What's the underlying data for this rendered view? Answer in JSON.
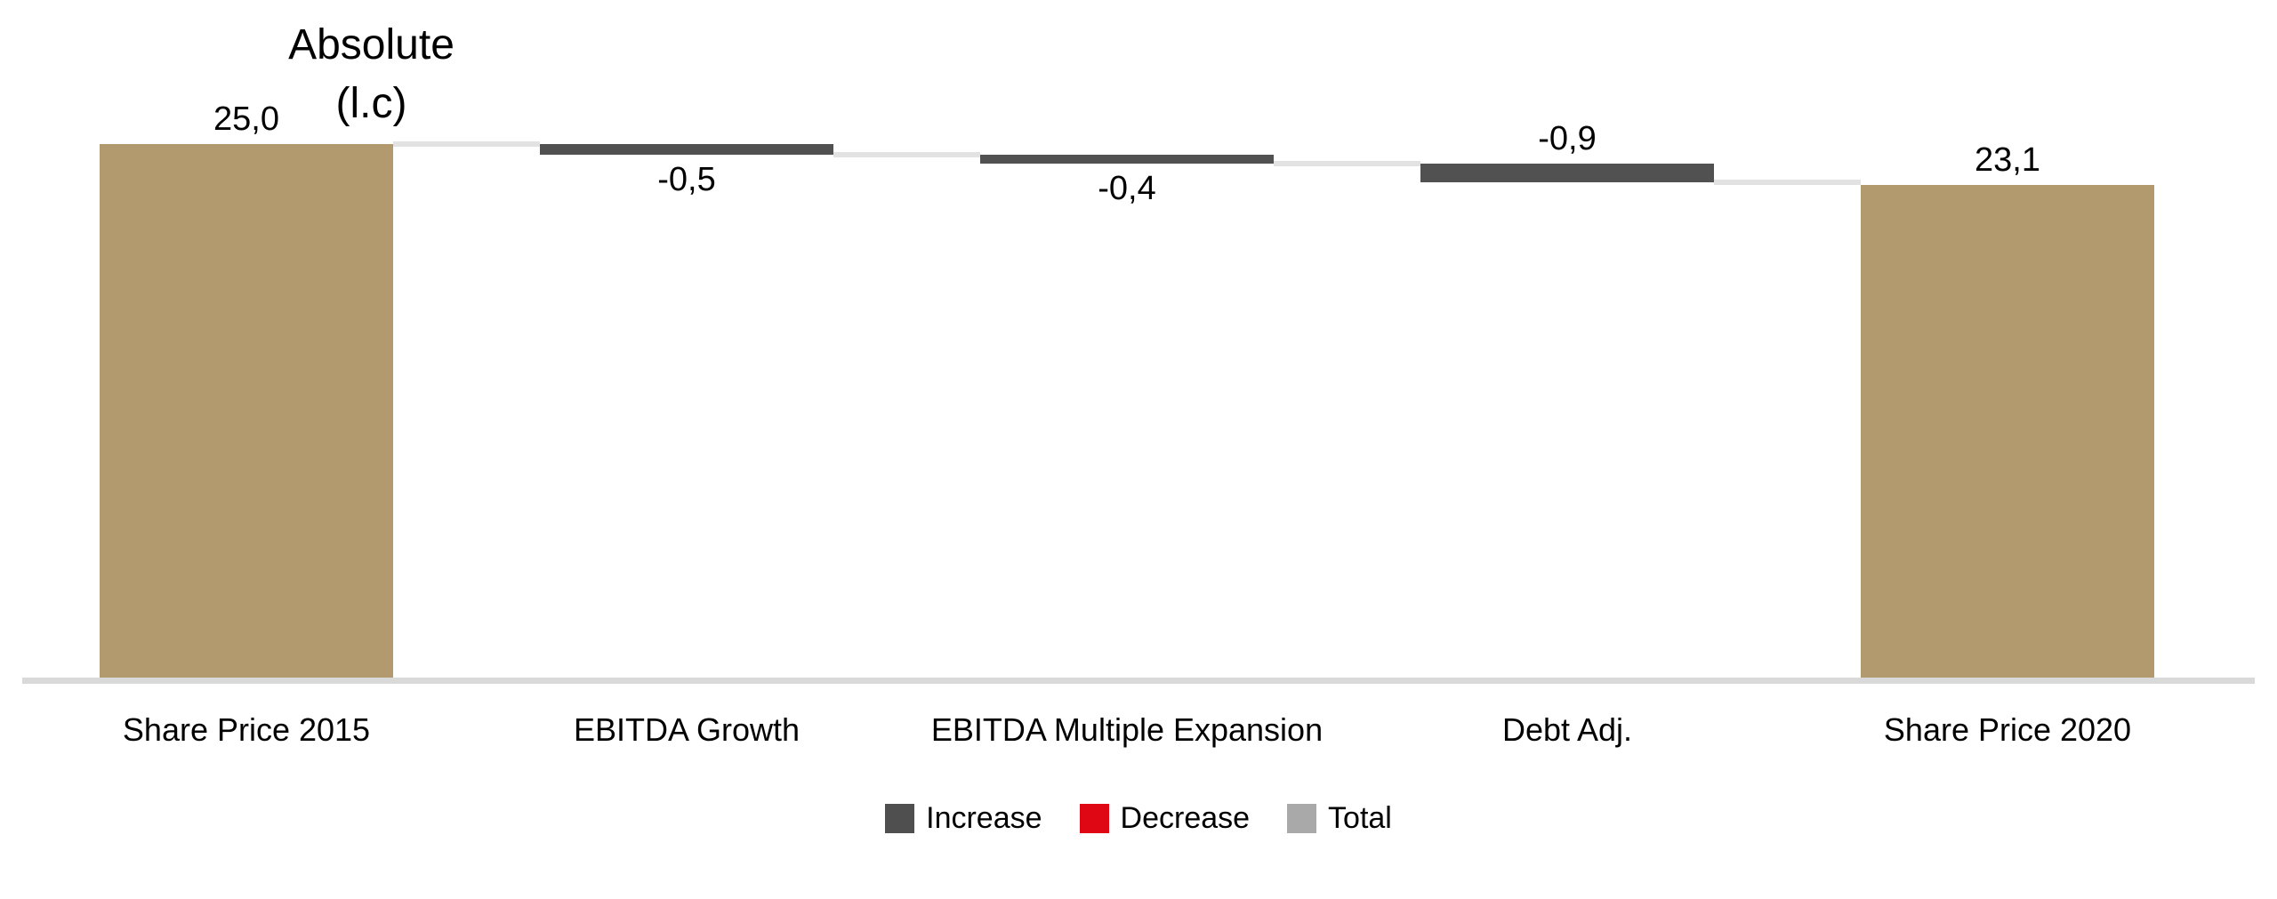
{
  "chart_data": {
    "type": "waterfall",
    "title_lines": {
      "line1": "Absolute",
      "line2": "(l.c)"
    },
    "categories": [
      "Share Price 2015",
      "EBITDA Growth",
      "EBITDA Multiple Expansion",
      "Debt Adj.",
      "Share Price 2020"
    ],
    "steps": [
      {
        "category": "Share Price 2015",
        "kind": "total",
        "value": 25.0,
        "label": "25,0",
        "label_position": "above",
        "color": "#b29a6e"
      },
      {
        "category": "EBITDA Growth",
        "kind": "decrease",
        "value": -0.5,
        "label": "-0,5",
        "label_position": "below",
        "color": "#515151"
      },
      {
        "category": "EBITDA Multiple Expansion",
        "kind": "decrease",
        "value": -0.4,
        "label": "-0,4",
        "label_position": "below",
        "color": "#515151"
      },
      {
        "category": "Debt Adj.",
        "kind": "decrease",
        "value": -0.9,
        "label": "-0,9",
        "label_position": "above",
        "color": "#515151"
      },
      {
        "category": "Share Price 2020",
        "kind": "total",
        "value": 23.1,
        "label": "23,1",
        "label_position": "above",
        "color": "#b29a6e"
      }
    ],
    "legend": [
      {
        "label": "Increase",
        "color": "#4f4f4f"
      },
      {
        "label": "Decrease",
        "color": "#e00714"
      },
      {
        "label": "Total",
        "color": "#a9a9a9"
      }
    ],
    "colors": {
      "connector": "#e2e2e2",
      "axis_line": "#d9d9d9",
      "text": "#000000",
      "background": "#ffffff"
    },
    "value_axis_visible": false,
    "gridlines": false,
    "legend_position": "bottom-center",
    "number_format": "decimal-comma"
  }
}
